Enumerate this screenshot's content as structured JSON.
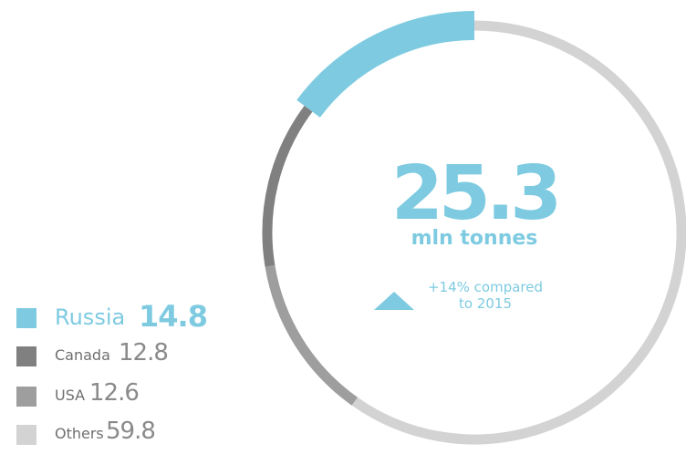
{
  "chart_data": {
    "type": "pie",
    "style": "donut",
    "center_value": "25.3",
    "center_unit": "mln tonnes",
    "change_text": [
      "+14% compared",
      "to  2015"
    ],
    "change_direction": "up",
    "categories": [
      "Russia",
      "Canada",
      "USA",
      "Others"
    ],
    "values": [
      14.8,
      12.8,
      12.6,
      59.8
    ],
    "value_labels": [
      "14.8",
      "12.8",
      "12.6",
      "59.8"
    ],
    "colors": [
      "#7ecbe1",
      "#808080",
      "#9e9e9e",
      "#d3d3d3"
    ],
    "start_angle_deg": 0,
    "direction": "counterclockwise",
    "legend_position": "bottom-left"
  }
}
